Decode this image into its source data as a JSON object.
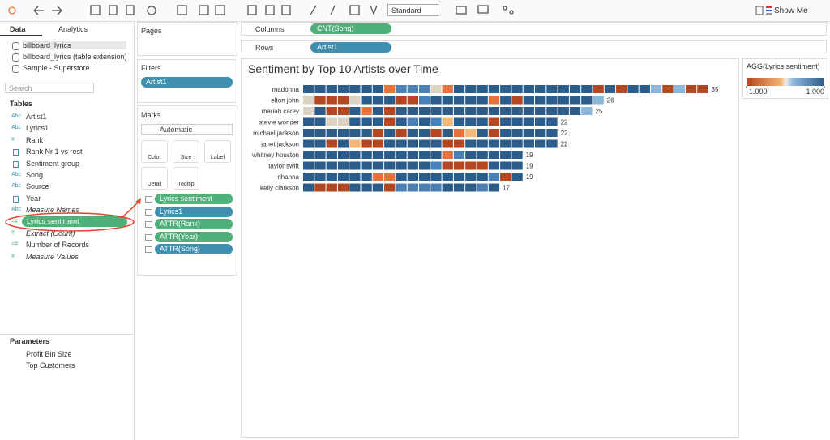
{
  "toolbar": {
    "mode": "Standard",
    "show_me": "Show Me"
  },
  "data_pane": {
    "tabs": [
      "Data",
      "Analytics"
    ],
    "sources": [
      "billboard_lyrics",
      "billboard_lyrics (table extension)",
      "Sample - Superstore"
    ],
    "search": "Search",
    "tables_heading": "Tables",
    "fields": [
      {
        "icon": "Abc",
        "name": "Artist1"
      },
      {
        "icon": "Abc",
        "name": "Lyrics1"
      },
      {
        "icon": "#",
        "name": "Rank"
      },
      {
        "icon": null,
        "name": "Rank Nr 1 vs rest"
      },
      {
        "icon": null,
        "name": "Sentiment group"
      },
      {
        "icon": "Abc",
        "name": "Song"
      },
      {
        "icon": "Abc",
        "name": "Source"
      },
      {
        "icon": null,
        "name": "Year"
      },
      {
        "icon": "Abc",
        "name": "Measure Names"
      },
      {
        "icon": "=#",
        "name": "Lyrics sentiment"
      },
      {
        "icon": "#",
        "name": "Extract (Count)"
      },
      {
        "icon": "=#",
        "name": "Number of Records"
      },
      {
        "icon": "#",
        "name": "Measure Values"
      }
    ],
    "parameters_heading": "Parameters",
    "parameters": [
      "Profit Bin Size",
      "Top Customers"
    ]
  },
  "cards": {
    "pages": "Pages",
    "filters": "Filters",
    "filter_pills": [
      "Artist1"
    ],
    "marks": "Marks",
    "mark_type": "Automatic",
    "buttons": [
      "Color",
      "Size",
      "Label",
      "Detail",
      "Tooltip"
    ],
    "mark_pills": [
      "Lyrics sentiment",
      "Lyrics1",
      "ATTR(Rank)",
      "ATTR(Year)",
      "ATTR(Song)"
    ]
  },
  "shelves": {
    "columns_label": "Columns",
    "columns": "CNT(Song)",
    "rows_label": "Rows",
    "rows": "Artist1"
  },
  "chart_data": {
    "type": "bar",
    "title": "Sentiment by Top 10 Artists over Time",
    "categories": [
      "madonna",
      "elton john",
      "mariah carey",
      "stevie wonder",
      "michael jackson",
      "janet jackson",
      "whitney houston",
      "taylor swift",
      "rihanna",
      "kelly clarkson"
    ],
    "values": [
      35,
      26,
      25,
      22,
      22,
      22,
      19,
      19,
      19,
      17
    ],
    "palette": {
      "D": "#2b5c8a",
      "B": "#4a80b8",
      "L": "#8db6dc",
      "G": "#dcd3c3",
      "O": "#e8733a",
      "P": "#f3b878",
      "R": "#b4471f"
    },
    "segment_colors": [
      "DDDDDDDOBBBGODDDDDDDDDDDDRDRDDLRLRR",
      "GRRRGDDDRRBDDDDDODRDDDDDDL",
      "GDRRDODRDDDDDDDDDDDDDDDDL",
      "DDGGDDDRDBDBPDDDRDDDDD",
      "DDDDDDRDRDDRDOPDRDDDDD",
      "DDRDPRRDDDDDRRDDDDDDDD",
      "DDDDDDDDDDDDOBDDDDD",
      "DDDDDDDDDDDBRRRRDDD",
      "DDDDDDOODDDDDDDDBRD",
      "DRRRDDDRBBBBDDDBD"
    ],
    "legend": {
      "title": "AGG(Lyrics sentiment)",
      "min": {
        "value": -1,
        "label": "-1.000"
      },
      "max": {
        "value": 1,
        "label": "1.000"
      }
    }
  }
}
